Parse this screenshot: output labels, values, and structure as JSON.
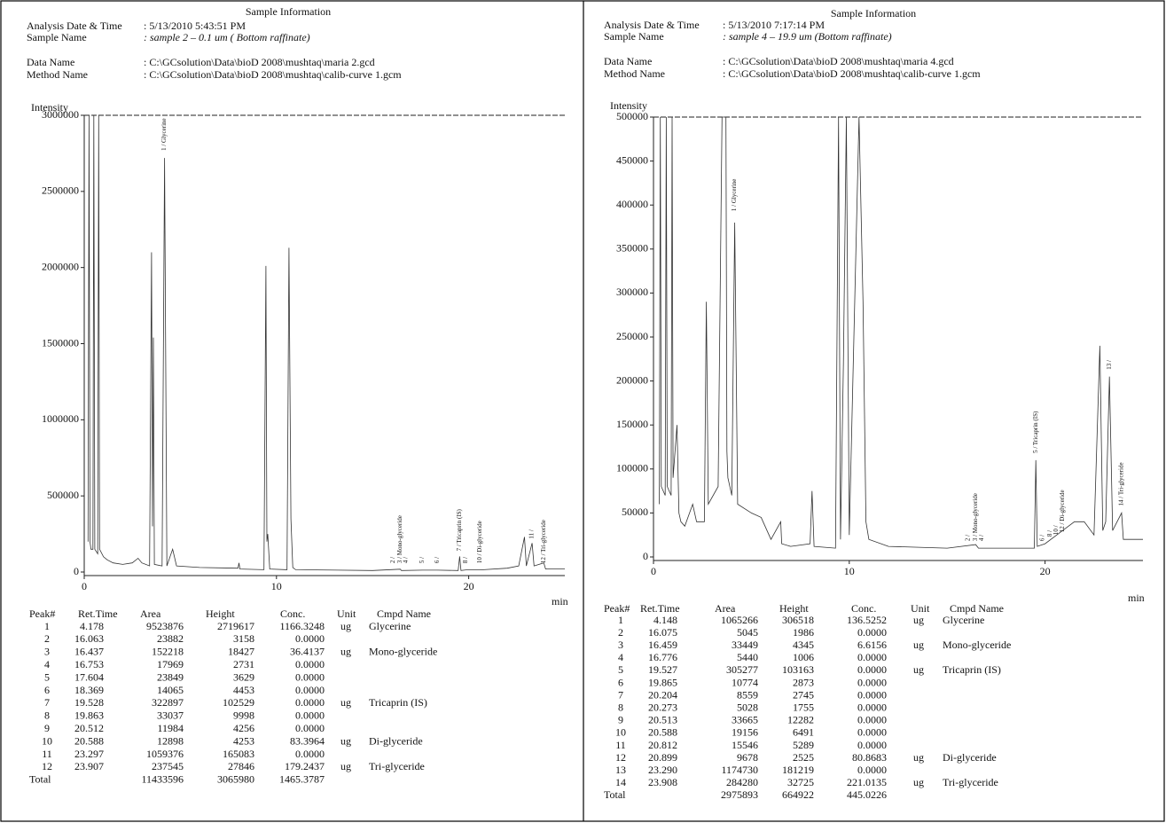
{
  "panels": [
    {
      "title": "Sample Information",
      "fields": [
        {
          "label": "Analysis Date & Time",
          "value": ": 5/13/2010 5:43:51 PM"
        },
        {
          "label": "Sample Name",
          "value": ": sample 2 – 0.1 um ( Bottom raffinate)"
        },
        {
          "label": "Data Name",
          "value": ": C:\\GCsolution\\Data\\bioD 2008\\mushtaq\\maria 2.gcd"
        },
        {
          "label": "Method Name",
          "value": ": C:\\GCsolution\\Data\\bioD 2008\\mushtaq\\calib-curve 1.gcm"
        }
      ],
      "chart": {
        "type": "line",
        "y_label": "Intensity",
        "x_unit": "min",
        "xlim": [
          0,
          25
        ],
        "ylim": [
          0,
          3000000
        ],
        "xticks": [
          0,
          10,
          20
        ],
        "yticks": [
          0,
          500000,
          1000000,
          1500000,
          2000000,
          2500000,
          3000000
        ],
        "x": [
          0.2,
          0.25,
          0.3,
          0.35,
          0.45,
          0.5,
          0.55,
          0.7,
          0.75,
          0.8,
          1.0,
          1.2,
          1.5,
          2.0,
          2.5,
          2.8,
          3.0,
          3.4,
          3.5,
          3.55,
          3.6,
          3.65,
          4.05,
          4.178,
          4.3,
          4.6,
          4.8,
          6.0,
          8.0,
          8.05,
          8.1,
          9.35,
          9.45,
          9.5,
          9.55,
          9.65,
          10.55,
          10.65,
          10.75,
          10.85,
          11.0,
          15.0,
          16.44,
          16.5,
          17.6,
          18.37,
          19.45,
          19.53,
          19.6,
          19.86,
          20.59,
          22.0,
          22.6,
          22.9,
          23.0,
          23.297,
          23.4,
          23.907,
          24.0,
          25.0
        ],
        "values": [
          200000,
          3000000,
          200000,
          150000,
          150000,
          3000000,
          150000,
          120000,
          3000000,
          150000,
          100000,
          80000,
          60000,
          50000,
          60000,
          90000,
          60000,
          40000,
          2100000,
          300000,
          1540000,
          50000,
          40000,
          2719617,
          40000,
          150000,
          40000,
          30000,
          25000,
          60000,
          20000,
          15000,
          2010000,
          200000,
          250000,
          20000,
          15000,
          2130000,
          350000,
          30000,
          15000,
          10000,
          18427,
          10000,
          12000,
          12000,
          10000,
          102529,
          10000,
          14000,
          14000,
          25000,
          40000,
          230000,
          40000,
          190000,
          40000,
          60000,
          20000,
          20000
        ],
        "peak_labels": [
          {
            "text": "1 / Glycerine",
            "x": 4.178,
            "y": 2750000
          },
          {
            "text": "2 /",
            "x": 16.06,
            "y": 40000
          },
          {
            "text": "3 / Mono-glyceride",
            "x": 16.44,
            "y": 40000
          },
          {
            "text": "4 /",
            "x": 16.75,
            "y": 40000
          },
          {
            "text": "5 /",
            "x": 17.6,
            "y": 40000
          },
          {
            "text": "6 /",
            "x": 18.37,
            "y": 40000
          },
          {
            "text": "7 / Tricaprin (IS)",
            "x": 19.53,
            "y": 120000
          },
          {
            "text": "8 /",
            "x": 19.86,
            "y": 40000
          },
          {
            "text": "10 / Di-glyceride",
            "x": 20.59,
            "y": 40000
          },
          {
            "text": "11 /",
            "x": 23.3,
            "y": 200000
          },
          {
            "text": "12 / Tri-glyceride",
            "x": 23.91,
            "y": 40000
          }
        ]
      },
      "table": {
        "columns": [
          "Peak#",
          "Ret.Time",
          "Area",
          "Height",
          "Conc.",
          "Unit",
          "Cmpd Name"
        ],
        "rows": [
          [
            "1",
            "4.178",
            "9523876",
            "2719617",
            "1166.3248",
            "ug",
            "Glycerine"
          ],
          [
            "2",
            "16.063",
            "23882",
            "3158",
            "0.0000",
            null,
            null
          ],
          [
            "3",
            "16.437",
            "152218",
            "18427",
            "36.4137",
            "ug",
            "Mono-glyceride"
          ],
          [
            "4",
            "16.753",
            "17969",
            "2731",
            "0.0000",
            null,
            null
          ],
          [
            "5",
            "17.604",
            "23849",
            "3629",
            "0.0000",
            null,
            null
          ],
          [
            "6",
            "18.369",
            "14065",
            "4453",
            "0.0000",
            null,
            null
          ],
          [
            "7",
            "19.528",
            "322897",
            "102529",
            "0.0000",
            "ug",
            "Tricaprin (IS)"
          ],
          [
            "8",
            "19.863",
            "33037",
            "9998",
            "0.0000",
            null,
            null
          ],
          [
            "9",
            "20.512",
            "11984",
            "4256",
            "0.0000",
            null,
            null
          ],
          [
            "10",
            "20.588",
            "12898",
            "4253",
            "83.3964",
            "ug",
            "Di-glyceride"
          ],
          [
            "11",
            "23.297",
            "1059376",
            "165083",
            "0.0000",
            null,
            null
          ],
          [
            "12",
            "23.907",
            "237545",
            "27846",
            "179.2437",
            "ug",
            "Tri-glyceride"
          ]
        ],
        "total": [
          "Total",
          null,
          "11433596",
          "3065980",
          "1465.3787",
          null,
          null
        ]
      }
    },
    {
      "title": "Sample Information",
      "fields": [
        {
          "label": "Analysis Date & Time",
          "value": ": 5/13/2010 7:17:14 PM"
        },
        {
          "label": "Sample Name",
          "value": ": sample 4 – 19.9 um (Bottom raffinate)"
        },
        {
          "label": "Data Name",
          "value": ": C:\\GCsolution\\Data\\bioD 2008\\mushtaq\\maria 4.gcd"
        },
        {
          "label": "Method Name",
          "value": ": C:\\GCsolution\\Data\\bioD 2008\\mushtaq\\calib-curve 1.gcm"
        }
      ],
      "chart": {
        "type": "line",
        "y_label": "Intensity",
        "x_unit": "min",
        "xlim": [
          0,
          25
        ],
        "ylim": [
          0,
          500000
        ],
        "xticks": [
          0,
          10,
          20
        ],
        "yticks": [
          0,
          50000,
          100000,
          150000,
          200000,
          250000,
          300000,
          350000,
          400000,
          450000,
          500000
        ],
        "x": [
          0.3,
          0.35,
          0.4,
          0.6,
          0.65,
          0.7,
          0.9,
          0.95,
          1.0,
          1.2,
          1.3,
          1.4,
          1.6,
          2.0,
          2.2,
          2.6,
          2.7,
          2.8,
          3.3,
          3.5,
          3.6,
          3.7,
          3.75,
          3.8,
          4.0,
          4.148,
          4.3,
          5.0,
          5.5,
          6.0,
          6.5,
          6.55,
          7.0,
          8.0,
          8.1,
          8.2,
          9.3,
          9.45,
          9.55,
          9.7,
          9.85,
          10.0,
          10.5,
          10.7,
          10.85,
          11.0,
          12.0,
          15.0,
          16.46,
          16.6,
          19.45,
          19.527,
          19.6,
          20.0,
          20.9,
          21.5,
          22.0,
          22.5,
          22.8,
          22.95,
          23.1,
          23.29,
          23.45,
          23.908,
          24.0,
          25.0
        ],
        "values": [
          60000,
          500000,
          80000,
          70000,
          500000,
          80000,
          70000,
          500000,
          90000,
          150000,
          50000,
          40000,
          35000,
          60000,
          40000,
          40000,
          290000,
          60000,
          80000,
          500000,
          500000,
          500000,
          120000,
          90000,
          70000,
          380000,
          60000,
          50000,
          45000,
          20000,
          40000,
          15000,
          12000,
          15000,
          75000,
          12000,
          10000,
          500000,
          20000,
          220000,
          500000,
          25000,
          500000,
          290000,
          40000,
          20000,
          12000,
          10000,
          14000,
          10000,
          10000,
          110000,
          12000,
          15000,
          30000,
          40000,
          40000,
          25000,
          240000,
          30000,
          40000,
          205000,
          30000,
          50000,
          20000,
          20000
        ],
        "peak_labels": [
          {
            "text": "1 / Glycerine",
            "x": 4.148,
            "y": 390000
          },
          {
            "text": "2 /",
            "x": 16.08,
            "y": 15000
          },
          {
            "text": "3 / Mono-glyceride",
            "x": 16.46,
            "y": 15000
          },
          {
            "text": "4 /",
            "x": 16.78,
            "y": 15000
          },
          {
            "text": "5 / Tricaprin (IS)",
            "x": 19.527,
            "y": 115000
          },
          {
            "text": "6 /",
            "x": 19.87,
            "y": 15000
          },
          {
            "text": "8 /",
            "x": 20.27,
            "y": 20000
          },
          {
            "text": "10 /",
            "x": 20.59,
            "y": 22000
          },
          {
            "text": "12 / Di-glyceride",
            "x": 20.9,
            "y": 25000
          },
          {
            "text": "13 /",
            "x": 23.29,
            "y": 210000
          },
          {
            "text": "14 / Tri-glyceride",
            "x": 23.91,
            "y": 55000
          }
        ]
      },
      "table": {
        "columns": [
          "Peak#",
          "Ret.Time",
          "Area",
          "Height",
          "Conc.",
          "Unit",
          "Cmpd Name"
        ],
        "rows": [
          [
            "1",
            "4.148",
            "1065266",
            "306518",
            "136.5252",
            "ug",
            "Glycerine"
          ],
          [
            "2",
            "16.075",
            "5045",
            "1986",
            "0.0000",
            null,
            null
          ],
          [
            "3",
            "16.459",
            "33449",
            "4345",
            "6.6156",
            "ug",
            "Mono-glyceride"
          ],
          [
            "4",
            "16.776",
            "5440",
            "1006",
            "0.0000",
            null,
            null
          ],
          [
            "5",
            "19.527",
            "305277",
            "103163",
            "0.0000",
            "ug",
            "Tricaprin (IS)"
          ],
          [
            "6",
            "19.865",
            "10774",
            "2873",
            "0.0000",
            null,
            null
          ],
          [
            "7",
            "20.204",
            "8559",
            "2745",
            "0.0000",
            null,
            null
          ],
          [
            "8",
            "20.273",
            "5028",
            "1755",
            "0.0000",
            null,
            null
          ],
          [
            "9",
            "20.513",
            "33665",
            "12282",
            "0.0000",
            null,
            null
          ],
          [
            "10",
            "20.588",
            "19156",
            "6491",
            "0.0000",
            null,
            null
          ],
          [
            "11",
            "20.812",
            "15546",
            "5289",
            "0.0000",
            null,
            null
          ],
          [
            "12",
            "20.899",
            "9678",
            "2525",
            "80.8683",
            "ug",
            "Di-glyceride"
          ],
          [
            "13",
            "23.290",
            "1174730",
            "181219",
            "0.0000",
            null,
            null
          ],
          [
            "14",
            "23.908",
            "284280",
            "32725",
            "221.0135",
            "ug",
            "Tri-glyceride"
          ]
        ],
        "total": [
          "Total",
          null,
          "2975893",
          "664922",
          "445.0226",
          null,
          null
        ]
      }
    }
  ]
}
